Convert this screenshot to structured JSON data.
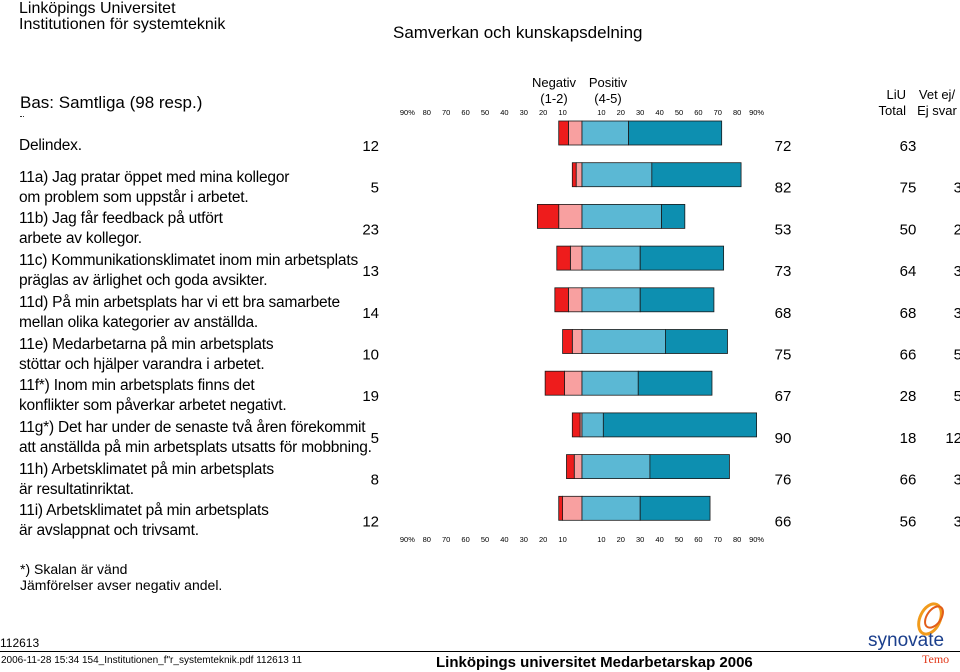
{
  "header": {
    "org_line1": "Linköpings Universitet",
    "org_line2": "Institutionen för systemteknik",
    "report_title": "Samverkan och kunskapsdelning",
    "basis": "Bas: Samtliga (98 resp.)"
  },
  "column_headers": {
    "negativ": "Negativ",
    "negativ_scale": "(1-2)",
    "positiv": "Positiv",
    "positiv_scale": "(4-5)",
    "liu_line1": "LiU",
    "liu_line2": "Total",
    "vet_line1": "Vet ej/",
    "vet_line2": "Ej svar"
  },
  "axis_ticks_left": [
    "90%",
    "80",
    "70",
    "60",
    "50",
    "40",
    "30",
    "20",
    "10"
  ],
  "axis_ticks_right": [
    "10",
    "20",
    "30",
    "40",
    "50",
    "60",
    "70",
    "80",
    "90%"
  ],
  "colors": {
    "neg_strong": "#ee1c1c",
    "neg_light": "#f8a0a0",
    "pos_light": "#5bb8d4",
    "pos_strong": "#0d8fb0",
    "border": "#1a1a1a"
  },
  "chart_data": {
    "type": "bar",
    "subtype": "diverging-stacked",
    "xlim": [
      -90,
      90
    ],
    "series": [
      {
        "name": "neg_strong"
      },
      {
        "name": "neg_light"
      },
      {
        "name": "pos_light"
      },
      {
        "name": "pos_strong"
      }
    ],
    "items": [
      {
        "label_line1": "Delindex.",
        "label_line2": "",
        "neg_total": "12",
        "neg_strong": 5,
        "neg_light": 7,
        "pos_light": 24,
        "pos_strong": 48,
        "pos_total": "72",
        "liu_total": "63",
        "vet_ej": ""
      },
      {
        "label_line1": "11a) Jag pratar öppet med mina kollegor",
        "label_line2": "om problem som uppstår i arbetet.",
        "neg_total": "5",
        "neg_strong": 2,
        "neg_light": 3,
        "pos_light": 36,
        "pos_strong": 46,
        "pos_total": "82",
        "liu_total": "75",
        "vet_ej": "3"
      },
      {
        "label_line1": "11b) Jag får feedback på utfört",
        "label_line2": "arbete av kollegor.",
        "neg_total": "23",
        "neg_strong": 11,
        "neg_light": 12,
        "pos_light": 41,
        "pos_strong": 12,
        "pos_total": "53",
        "liu_total": "50",
        "vet_ej": "2"
      },
      {
        "label_line1": "11c) Kommunikationsklimatet inom min arbetsplats",
        "label_line2": "präglas av ärlighet och goda avsikter.",
        "neg_total": "13",
        "neg_strong": 7,
        "neg_light": 6,
        "pos_light": 30,
        "pos_strong": 43,
        "pos_total": "73",
        "liu_total": "64",
        "vet_ej": "3"
      },
      {
        "label_line1": "11d) På min arbetsplats har vi ett bra samarbete",
        "label_line2": "mellan olika kategorier av anställda.",
        "neg_total": "14",
        "neg_strong": 7,
        "neg_light": 7,
        "pos_light": 30,
        "pos_strong": 38,
        "pos_total": "68",
        "liu_total": "68",
        "vet_ej": "3"
      },
      {
        "label_line1": "11e) Medarbetarna på min arbetsplats",
        "label_line2": "stöttar och hjälper varandra i arbetet.",
        "neg_total": "10",
        "neg_strong": 5,
        "neg_light": 5,
        "pos_light": 43,
        "pos_strong": 32,
        "pos_total": "75",
        "liu_total": "66",
        "vet_ej": "5"
      },
      {
        "label_line1": "11f*) Inom min arbetsplats finns det",
        "label_line2": "konflikter som påverkar arbetet negativt.",
        "neg_total": "19",
        "neg_strong": 10,
        "neg_light": 9,
        "pos_light": 29,
        "pos_strong": 38,
        "pos_total": "67",
        "liu_total": "28",
        "vet_ej": "5"
      },
      {
        "label_line1": "11g*) Det har under de senaste två åren förekommit",
        "label_line2": "att anställda på min arbetsplats utsatts för mobbning.",
        "neg_total": "5",
        "neg_strong": 4,
        "neg_light": 1,
        "pos_light": 11,
        "pos_strong": 79,
        "pos_total": "90",
        "liu_total": "18",
        "vet_ej": "12"
      },
      {
        "label_line1": "11h) Arbetsklimatet på min arbetsplats",
        "label_line2": "är resultatinriktat.",
        "neg_total": "8",
        "neg_strong": 4,
        "neg_light": 4,
        "pos_light": 35,
        "pos_strong": 41,
        "pos_total": "76",
        "liu_total": "66",
        "vet_ej": "3"
      },
      {
        "label_line1": "11i) Arbetsklimatet på min arbetsplats",
        "label_line2": "är avslappnat och trivsamt.",
        "neg_total": "12",
        "neg_strong": 2,
        "neg_light": 10,
        "pos_light": 30,
        "pos_strong": 36,
        "pos_total": "66",
        "liu_total": "56",
        "vet_ej": "3"
      }
    ]
  },
  "footnotes": {
    "line1": "*) Skalan är vänd",
    "line2": "Jämförelser avser negativ andel."
  },
  "footer": {
    "code": "112613",
    "meta": "2006-11-28 15:34 154_Institutionen_f\"r_systemteknik.pdf 112613  11",
    "survey": "Linköpings universitet Medarbetarskap 2006",
    "logo_word": "synovate",
    "logo_sub": "Temo"
  }
}
